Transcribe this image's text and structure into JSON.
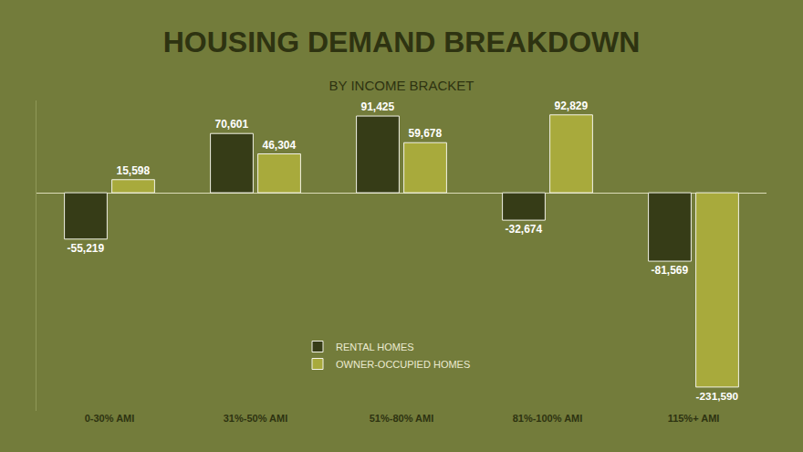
{
  "chart_data": {
    "type": "bar",
    "title": "HOUSING DEMAND BREAKDOWN",
    "subtitle": "BY INCOME BRACKET",
    "categories": [
      "0-30% AMI",
      "31%-50% AMI",
      "51%-80% AMI",
      "81%-100% AMI",
      "115%+ AMI"
    ],
    "series": [
      {
        "name": "RENTAL HOMES",
        "color": "#363c17",
        "values": [
          -55219,
          70601,
          91425,
          -32674,
          -81569
        ],
        "value_labels": [
          "-55,219",
          "70,601",
          "91,425",
          "-32,674",
          "-81,569"
        ]
      },
      {
        "name": "OWNER-OCCUPIED HOMES",
        "color": "#a8aa3c",
        "values": [
          15598,
          46304,
          59678,
          92829,
          -231590
        ],
        "value_labels": [
          "15,598",
          "46,304",
          "59,678",
          "92,829",
          "-231,590"
        ]
      }
    ],
    "ylim": [
      -260000,
      110000
    ],
    "grid": false,
    "legend": "bottom",
    "data_labels": true,
    "tick_labels": "x"
  }
}
